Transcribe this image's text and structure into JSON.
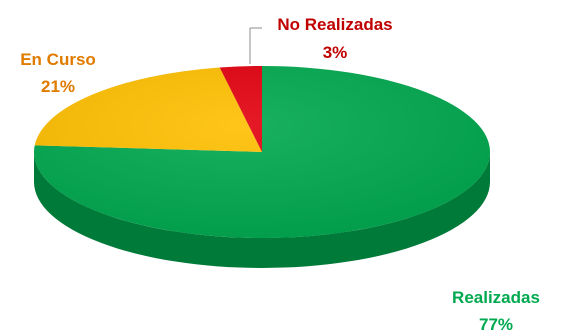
{
  "chart_data": {
    "type": "pie",
    "style": "3d",
    "title": "",
    "slices": [
      {
        "label": "Realizadas",
        "value": 77,
        "display": "77%",
        "color": "#00A94F",
        "label_color": "#00A94F"
      },
      {
        "label": "En Curso",
        "value": 21,
        "display": "21%",
        "color": "#FFC000",
        "label_color": "#E07B00"
      },
      {
        "label": "No Realizadas",
        "value": 3,
        "display": "3%",
        "color": "#E3000F",
        "label_color": "#C00000"
      }
    ],
    "legend": "none"
  }
}
